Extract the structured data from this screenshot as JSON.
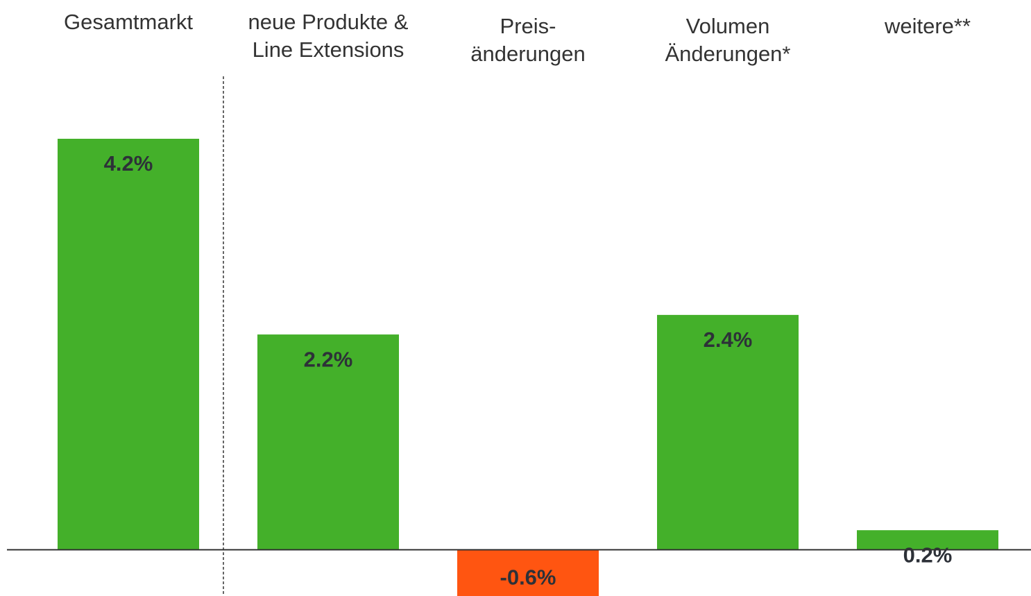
{
  "chart_data": {
    "type": "bar",
    "categories": [
      "Gesamtmarkt",
      "neue Produkte &\nLine Extensions",
      "Preis-\nänderungen",
      "Volumen\nÄnderungen*",
      "weitere**"
    ],
    "values": [
      4.2,
      2.2,
      -0.6,
      2.4,
      0.2
    ],
    "value_labels": [
      "4.2%",
      "2.2%",
      "-0.6%",
      "2.4%",
      "0.2%"
    ],
    "colors": [
      "#44b02a",
      "#44b02a",
      "#ff5511",
      "#44b02a",
      "#44b02a"
    ],
    "ylim": [
      -0.6,
      4.2
    ]
  }
}
